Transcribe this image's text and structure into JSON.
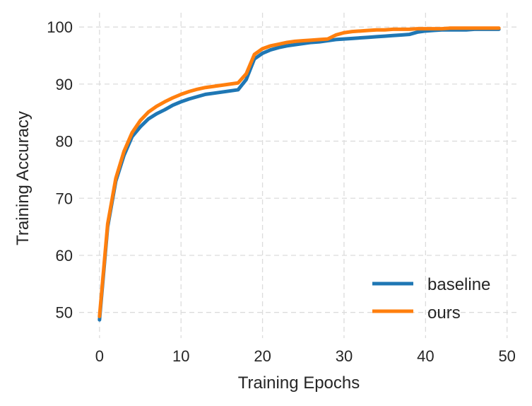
{
  "chart_data": {
    "type": "line",
    "xlabel": "Training Epochs",
    "ylabel": "Training Accuracy",
    "xlim": [
      -2.5,
      51.5
    ],
    "ylim": [
      45.5,
      102.5
    ],
    "xticks": [
      0,
      10,
      20,
      30,
      40,
      50
    ],
    "yticks": [
      50,
      60,
      70,
      80,
      90,
      100
    ],
    "grid": true,
    "legend_position": "bottom-right",
    "x": [
      0,
      1,
      2,
      3,
      4,
      5,
      6,
      7,
      8,
      9,
      10,
      11,
      12,
      13,
      14,
      15,
      16,
      17,
      18,
      19,
      20,
      21,
      22,
      23,
      24,
      25,
      26,
      27,
      28,
      29,
      30,
      31,
      32,
      33,
      34,
      35,
      36,
      37,
      38,
      39,
      40,
      41,
      42,
      43,
      44,
      45,
      46,
      47,
      48,
      49
    ],
    "series": [
      {
        "name": "baseline",
        "color": "#1f77b4",
        "values": [
          48.7,
          65.0,
          73.0,
          77.5,
          80.8,
          82.5,
          83.9,
          84.8,
          85.5,
          86.3,
          86.9,
          87.4,
          87.8,
          88.2,
          88.4,
          88.6,
          88.8,
          89.0,
          90.8,
          94.4,
          95.4,
          96.0,
          96.4,
          96.7,
          96.9,
          97.1,
          97.3,
          97.4,
          97.6,
          97.8,
          97.9,
          98.0,
          98.1,
          98.2,
          98.3,
          98.4,
          98.5,
          98.6,
          98.7,
          99.1,
          99.3,
          99.4,
          99.5,
          99.5,
          99.5,
          99.5,
          99.6,
          99.6,
          99.6,
          99.6
        ]
      },
      {
        "name": "ours",
        "color": "#ff7f0e",
        "values": [
          49.3,
          65.5,
          73.5,
          78.2,
          81.5,
          83.6,
          85.1,
          86.1,
          86.9,
          87.6,
          88.2,
          88.7,
          89.1,
          89.4,
          89.6,
          89.8,
          90.0,
          90.2,
          91.8,
          95.2,
          96.2,
          96.7,
          97.0,
          97.3,
          97.5,
          97.6,
          97.7,
          97.8,
          97.9,
          98.6,
          99.0,
          99.2,
          99.3,
          99.4,
          99.5,
          99.5,
          99.6,
          99.6,
          99.6,
          99.7,
          99.7,
          99.7,
          99.7,
          99.8,
          99.8,
          99.8,
          99.8,
          99.8,
          99.8,
          99.8
        ]
      }
    ]
  }
}
